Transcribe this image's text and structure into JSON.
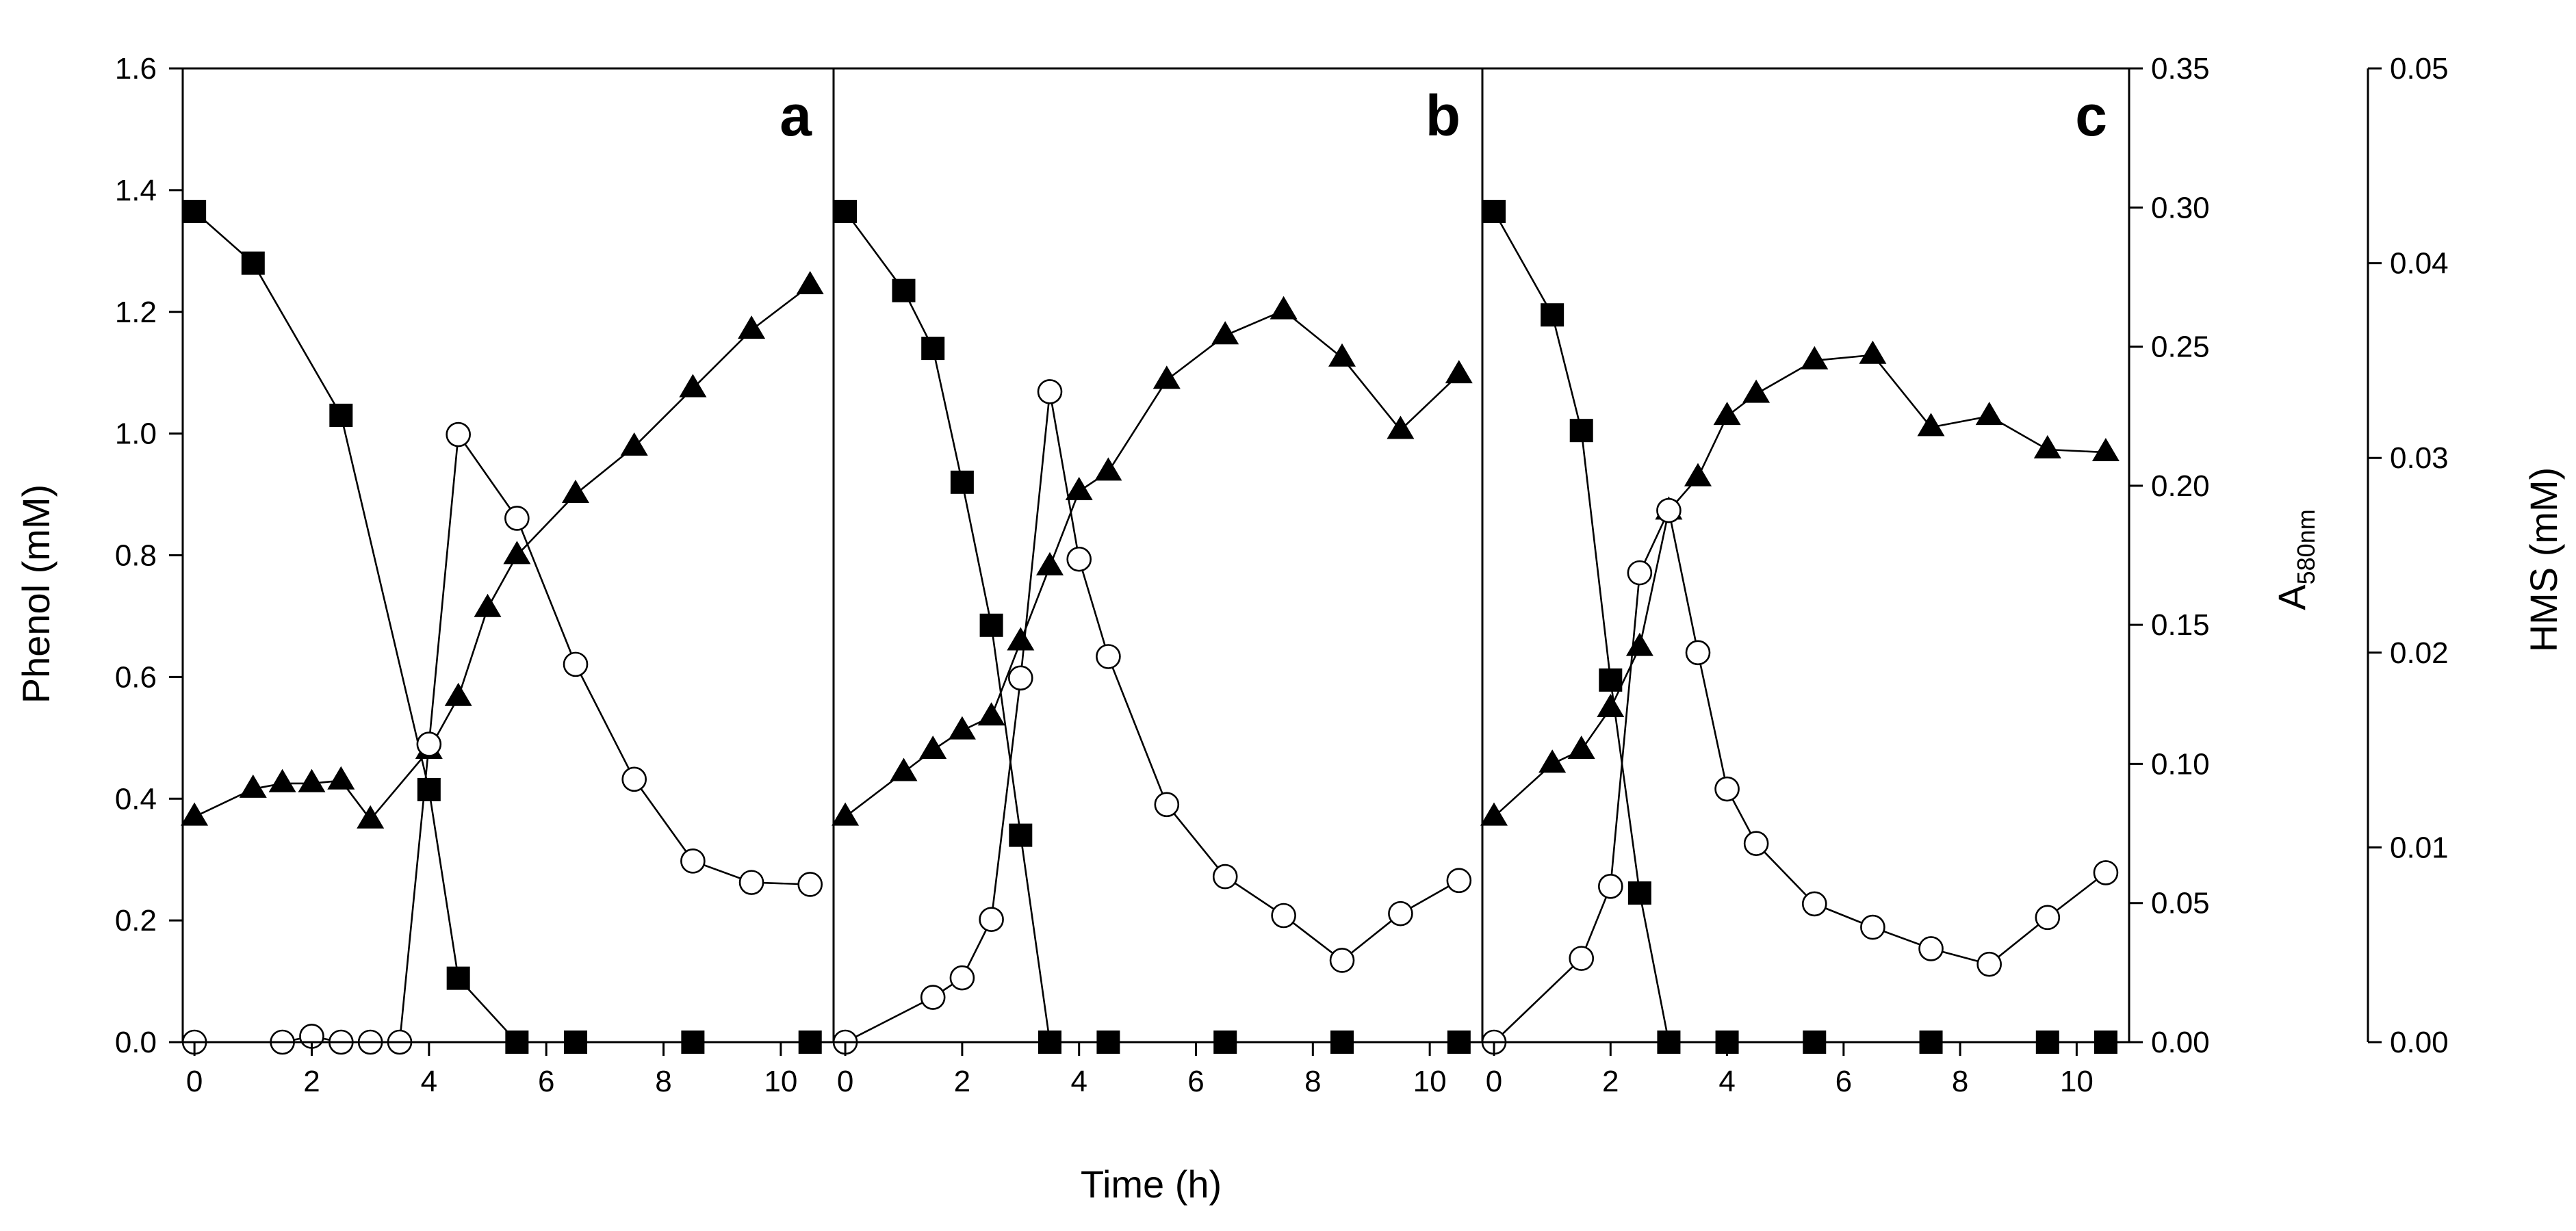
{
  "chart_data": {
    "type": "line",
    "xlabel": "Time (h)",
    "ylabel_left": "Phenol (mM)",
    "ylabel_right1_main": "A",
    "ylabel_right1_sub": "580nm",
    "ylabel_right2": "HMS (mM)",
    "x_ticks": [
      "0",
      "2",
      "4",
      "6",
      "8",
      "10"
    ],
    "x_tick_values": [
      0,
      2,
      4,
      6,
      8,
      10
    ],
    "xlim": [
      -0.2,
      10.9
    ],
    "left_axis": {
      "ylim": [
        0,
        1.6
      ],
      "tick_values": [
        0,
        0.2,
        0.4,
        0.6,
        0.8,
        1.0,
        1.2,
        1.4,
        1.6
      ],
      "tick_labels": [
        "0.0",
        "0.2",
        "0.4",
        "0.6",
        "0.8",
        "1.0",
        "1.2",
        "1.4",
        "1.6"
      ]
    },
    "right_axis_1": {
      "ylim": [
        0,
        0.35
      ],
      "tick_values": [
        0,
        0.05,
        0.1,
        0.15,
        0.2,
        0.25,
        0.3,
        0.35
      ],
      "tick_labels": [
        "0.00",
        "0.05",
        "0.10",
        "0.15",
        "0.20",
        "0.25",
        "0.30",
        "0.35"
      ]
    },
    "right_axis_2": {
      "ylim": [
        0,
        0.05
      ],
      "tick_values": [
        0,
        0.01,
        0.02,
        0.03,
        0.04,
        0.05
      ],
      "tick_labels": [
        "0.00",
        "0.01",
        "0.02",
        "0.03",
        "0.04",
        "0.05"
      ]
    },
    "panels": [
      {
        "label": "a",
        "series": [
          {
            "name": "Phenol",
            "marker": "filled-square",
            "axis": "left",
            "x": [
              0,
              1,
              2.5,
              4,
              4.5,
              5.5,
              6.5,
              8.5,
              10.5
            ],
            "y": [
              1.365,
              1.28,
              1.03,
              0.415,
              0.105,
              0,
              0,
              0,
              0
            ]
          },
          {
            "name": "A580nm",
            "marker": "filled-triangle",
            "axis": "right1",
            "x": [
              0,
              1,
              1.5,
              2,
              2.5,
              3,
              4,
              4.5,
              5,
              5.5,
              6.5,
              7.5,
              8.5,
              9.5,
              10.5
            ],
            "y": [
              0.081,
              0.091,
              0.093,
              0.093,
              0.094,
              0.08,
              0.105,
              0.124,
              0.156,
              0.175,
              0.197,
              0.214,
              0.235,
              0.256,
              0.272
            ]
          },
          {
            "name": "HMS",
            "marker": "open-circle",
            "axis": "right2",
            "x": [
              0,
              1.5,
              2,
              2.5,
              3,
              3.5,
              4,
              4.5,
              5.5,
              6.5,
              7.5,
              8.5,
              9.5,
              10.5
            ],
            "y": [
              0,
              0,
              0.0003,
              0,
              0,
              0,
              0.0153,
              0.0312,
              0.0269,
              0.0194,
              0.0135,
              0.0093,
              0.0082,
              0.0081
            ]
          }
        ]
      },
      {
        "label": "b",
        "series": [
          {
            "name": "Phenol",
            "marker": "filled-square",
            "axis": "left",
            "x": [
              0,
              1,
              1.5,
              2,
              2.5,
              3,
              3.5,
              4.5,
              6.5,
              8.5,
              10.5
            ],
            "y": [
              1.365,
              1.235,
              1.14,
              0.92,
              0.685,
              0.34,
              0,
              0,
              0,
              0,
              0
            ]
          },
          {
            "name": "A580nm",
            "marker": "filled-triangle",
            "axis": "right1",
            "x": [
              0,
              1,
              1.5,
              2,
              2.5,
              3,
              3.5,
              4,
              4.5,
              5.5,
              6.5,
              7.5,
              8.5,
              9.5,
              10.5
            ],
            "y": [
              0.081,
              0.097,
              0.105,
              0.112,
              0.117,
              0.144,
              0.171,
              0.198,
              0.205,
              0.238,
              0.254,
              0.263,
              0.246,
              0.22,
              0.24
            ]
          },
          {
            "name": "HMS",
            "marker": "open-circle",
            "axis": "right2",
            "x": [
              0,
              1.5,
              2,
              2.5,
              3,
              3.5,
              4,
              4.5,
              5.5,
              6.5,
              7.5,
              8.5,
              9.5,
              10.5
            ],
            "y": [
              0,
              0.0023,
              0.0033,
              0.0063,
              0.0187,
              0.0334,
              0.0248,
              0.0198,
              0.0122,
              0.0085,
              0.0065,
              0.0042,
              0.0066,
              0.0083
            ]
          }
        ]
      },
      {
        "label": "c",
        "series": [
          {
            "name": "Phenol",
            "marker": "filled-square",
            "axis": "left",
            "x": [
              0,
              1,
              1.5,
              2,
              2.5,
              3,
              4,
              5.5,
              7.5,
              9.5,
              10.5
            ],
            "y": [
              1.365,
              1.195,
              1.005,
              0.595,
              0.245,
              0,
              0,
              0,
              0,
              0,
              0
            ]
          },
          {
            "name": "A580nm",
            "marker": "filled-triangle",
            "axis": "right1",
            "x": [
              0,
              1,
              1.5,
              2,
              2.5,
              3,
              3.5,
              4,
              4.5,
              5.5,
              6.5,
              7.5,
              8.5,
              9.5,
              10.5
            ],
            "y": [
              0.081,
              0.1,
              0.105,
              0.12,
              0.142,
              0.191,
              0.203,
              0.225,
              0.233,
              0.245,
              0.247,
              0.221,
              0.225,
              0.213,
              0.212
            ]
          },
          {
            "name": "HMS",
            "marker": "open-circle",
            "axis": "right2",
            "x": [
              0,
              1.5,
              2,
              2.5,
              3,
              3.5,
              4,
              4.5,
              5.5,
              6.5,
              7.5,
              8.5,
              9.5,
              10.5
            ],
            "y": [
              0,
              0.0043,
              0.008,
              0.0241,
              0.0273,
              0.02,
              0.013,
              0.0102,
              0.0071,
              0.0059,
              0.0048,
              0.004,
              0.0064,
              0.0087
            ]
          }
        ]
      }
    ]
  }
}
